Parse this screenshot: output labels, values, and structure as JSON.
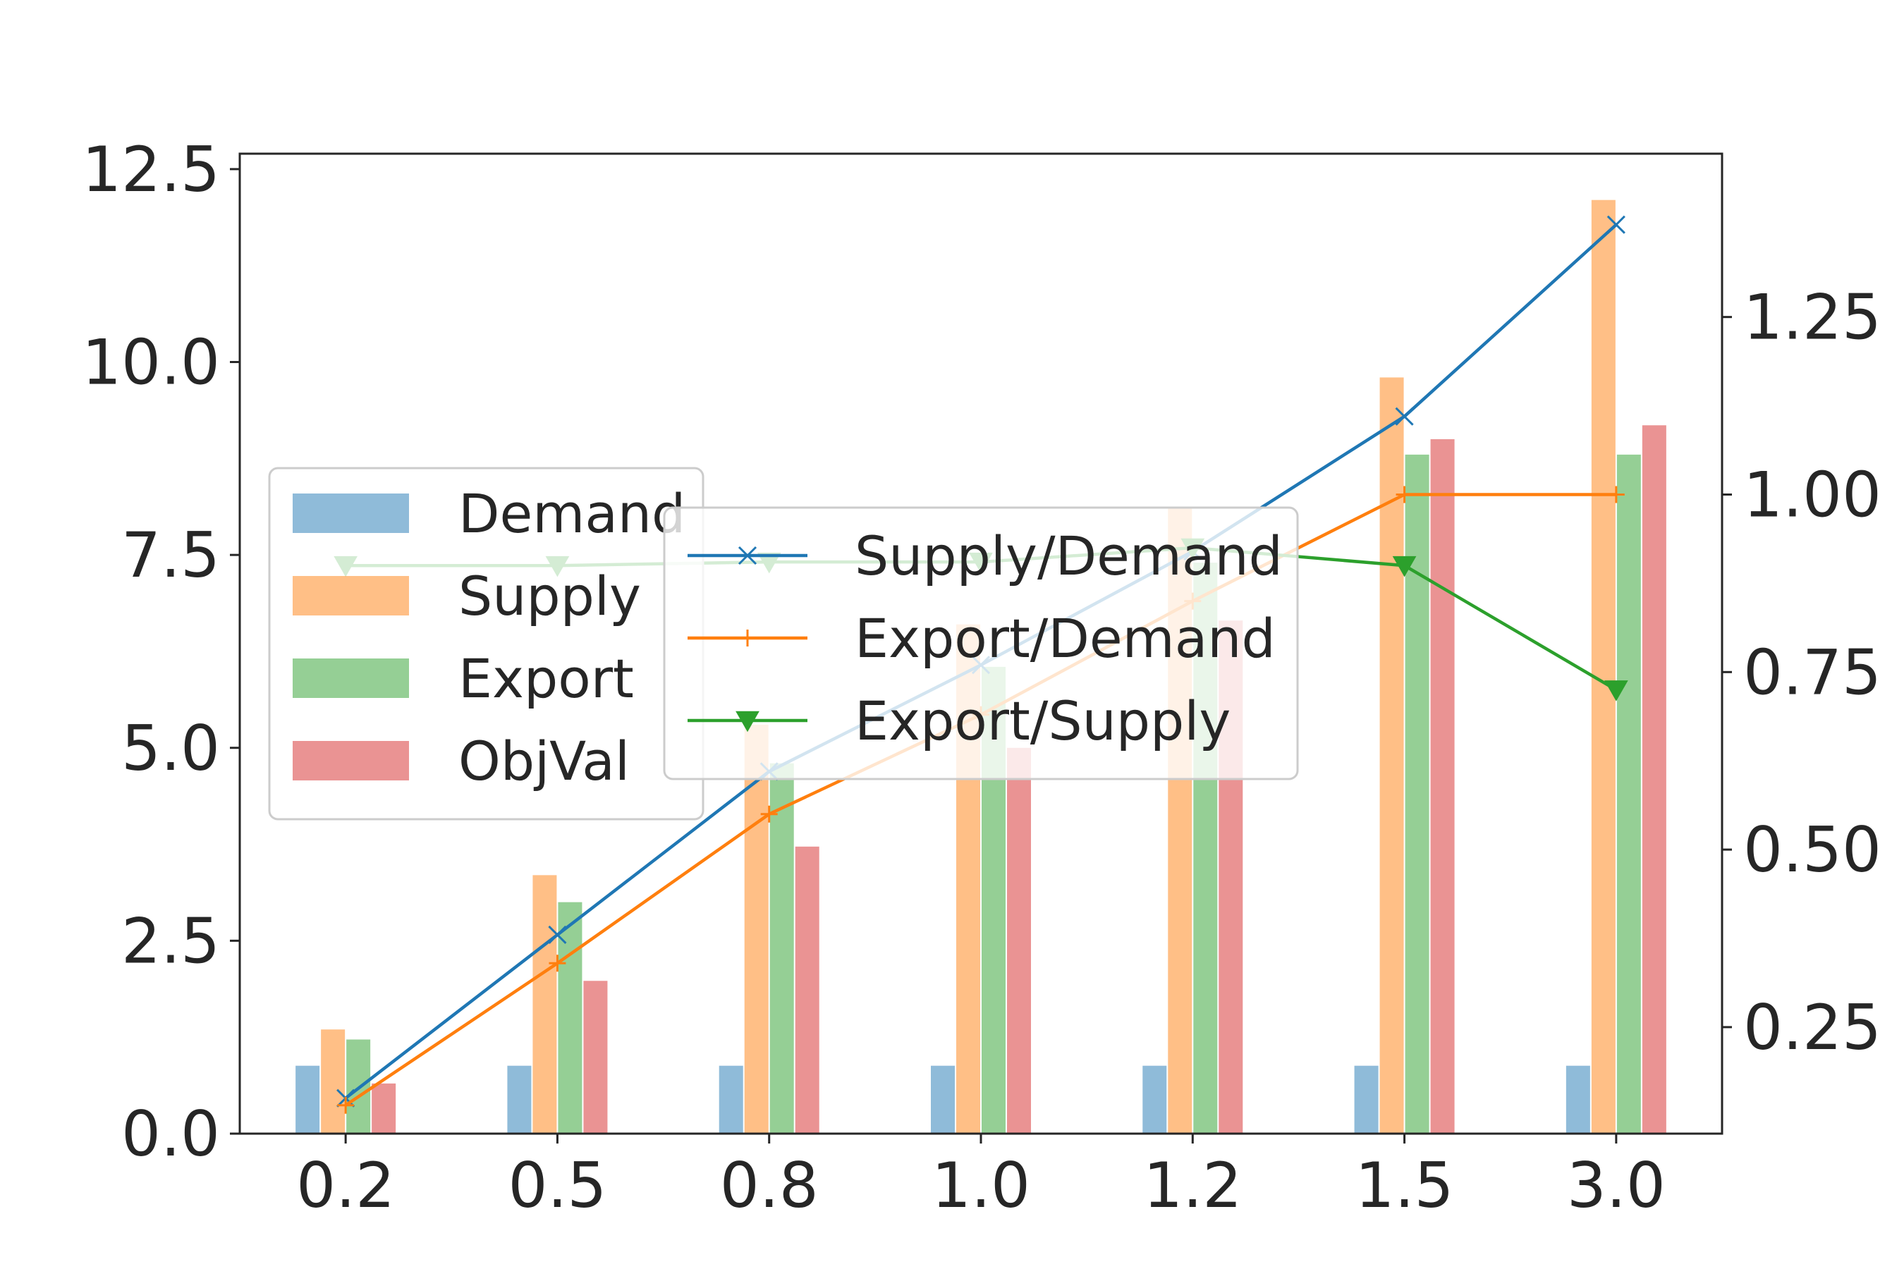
{
  "chart_data": {
    "type": "bar+line",
    "categories": [
      "0.2",
      "0.5",
      "0.8",
      "1.0",
      "1.2",
      "1.5",
      "3.0"
    ],
    "left_axis": {
      "ylim": [
        0,
        12.7
      ],
      "ticks": [
        0.0,
        2.5,
        5.0,
        7.5,
        10.0,
        12.5
      ],
      "tick_labels": [
        "0.0",
        "2.5",
        "5.0",
        "7.5",
        "10.0",
        "12.5"
      ]
    },
    "right_axis": {
      "ylim": [
        0.1,
        1.48
      ],
      "ticks": [
        0.25,
        0.5,
        0.75,
        1.0,
        1.25
      ],
      "tick_labels": [
        "0.25",
        "0.50",
        "0.75",
        "1.00",
        "1.25"
      ]
    },
    "bar_series": [
      {
        "name": "Demand",
        "color": "#1f77b4",
        "values": [
          0.88,
          0.88,
          0.88,
          0.88,
          0.88,
          0.88,
          0.88
        ]
      },
      {
        "name": "Supply",
        "color": "#ff7f0e",
        "values": [
          1.35,
          3.35,
          5.3,
          6.6,
          8.1,
          9.8,
          12.1
        ]
      },
      {
        "name": "Export",
        "color": "#2ca02c",
        "values": [
          1.22,
          3.0,
          4.8,
          6.05,
          7.4,
          8.8,
          8.8
        ]
      },
      {
        "name": "ObjVal",
        "color": "#d62728",
        "values": [
          0.65,
          1.98,
          3.72,
          5.0,
          6.65,
          9.0,
          9.18
        ]
      }
    ],
    "line_series": [
      {
        "name": "Supply/Demand",
        "color": "#1f77b4",
        "marker": "x",
        "values": [
          0.15,
          0.38,
          0.61,
          0.76,
          0.92,
          1.11,
          1.38
        ]
      },
      {
        "name": "Export/Demand",
        "color": "#ff7f0e",
        "marker": "+",
        "values": [
          0.14,
          0.34,
          0.55,
          0.69,
          0.85,
          1.0,
          1.0
        ]
      },
      {
        "name": "Export/Supply",
        "color": "#2ca02c",
        "marker": "triangle-down",
        "values": [
          0.9,
          0.9,
          0.905,
          0.905,
          0.925,
          0.9,
          0.725
        ]
      }
    ],
    "bar_legend_placement": "center-left",
    "line_legend_placement": "center",
    "grid": false
  }
}
